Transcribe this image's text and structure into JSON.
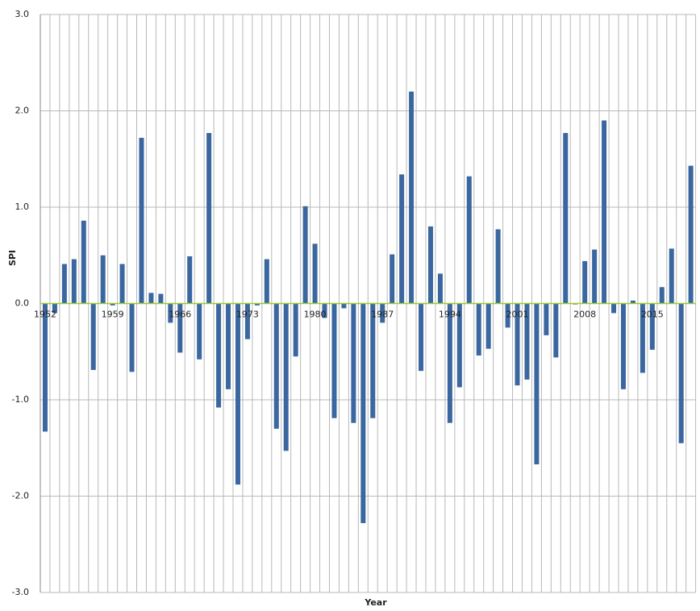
{
  "chart_data": {
    "type": "bar",
    "x_label": "Year",
    "y_label": "SPI",
    "categories": [
      "1952",
      null,
      null,
      null,
      null,
      null,
      null,
      "1959",
      null,
      null,
      null,
      null,
      null,
      null,
      "1966",
      null,
      null,
      null,
      null,
      null,
      null,
      "1973",
      null,
      null,
      null,
      null,
      null,
      null,
      "1980",
      null,
      null,
      null,
      null,
      null,
      null,
      "1987",
      null,
      null,
      null,
      null,
      null,
      null,
      "1994",
      null,
      null,
      null,
      null,
      null,
      null,
      "2001",
      null,
      null,
      null,
      null,
      null,
      null,
      "2008",
      null,
      null,
      null,
      null,
      null,
      null,
      "2015",
      null,
      null,
      null,
      null
    ],
    "values": [
      -1.33,
      -0.1,
      0.41,
      0.46,
      0.86,
      -0.69,
      0.5,
      -0.02,
      0.41,
      -0.71,
      1.72,
      0.11,
      0.1,
      -0.2,
      -0.51,
      0.49,
      -0.58,
      1.77,
      -1.08,
      -0.89,
      -1.88,
      -0.37,
      -0.02,
      0.46,
      -1.3,
      -1.53,
      -0.55,
      1.01,
      0.62,
      -0.15,
      -1.19,
      -0.05,
      -1.24,
      -2.28,
      -1.19,
      -0.2,
      0.51,
      1.34,
      2.2,
      -0.7,
      0.8,
      0.31,
      -1.24,
      -0.87,
      1.32,
      -0.54,
      -0.47,
      0.77,
      -0.25,
      -0.85,
      -0.79,
      -1.67,
      -0.33,
      -0.56,
      1.77,
      -0.01,
      0.44,
      0.56,
      1.9,
      -0.1,
      -0.89,
      0.03,
      -0.72,
      -0.48,
      0.17,
      0.57,
      -1.45,
      1.43
    ],
    "color": "#3a67a0",
    "zero_line_color": "#9acd32",
    "ylim": [
      -3,
      3
    ],
    "yticks": [
      {
        "value": -3,
        "label": "-3.0"
      },
      {
        "value": -2,
        "label": "-2.0"
      },
      {
        "value": -1,
        "label": "-1.0"
      },
      {
        "value": 0,
        "label": "0.0"
      },
      {
        "value": 1,
        "label": "1.0"
      },
      {
        "value": 2,
        "label": "2.0"
      },
      {
        "value": 3,
        "label": "3.0"
      }
    ],
    "grid": true
  }
}
